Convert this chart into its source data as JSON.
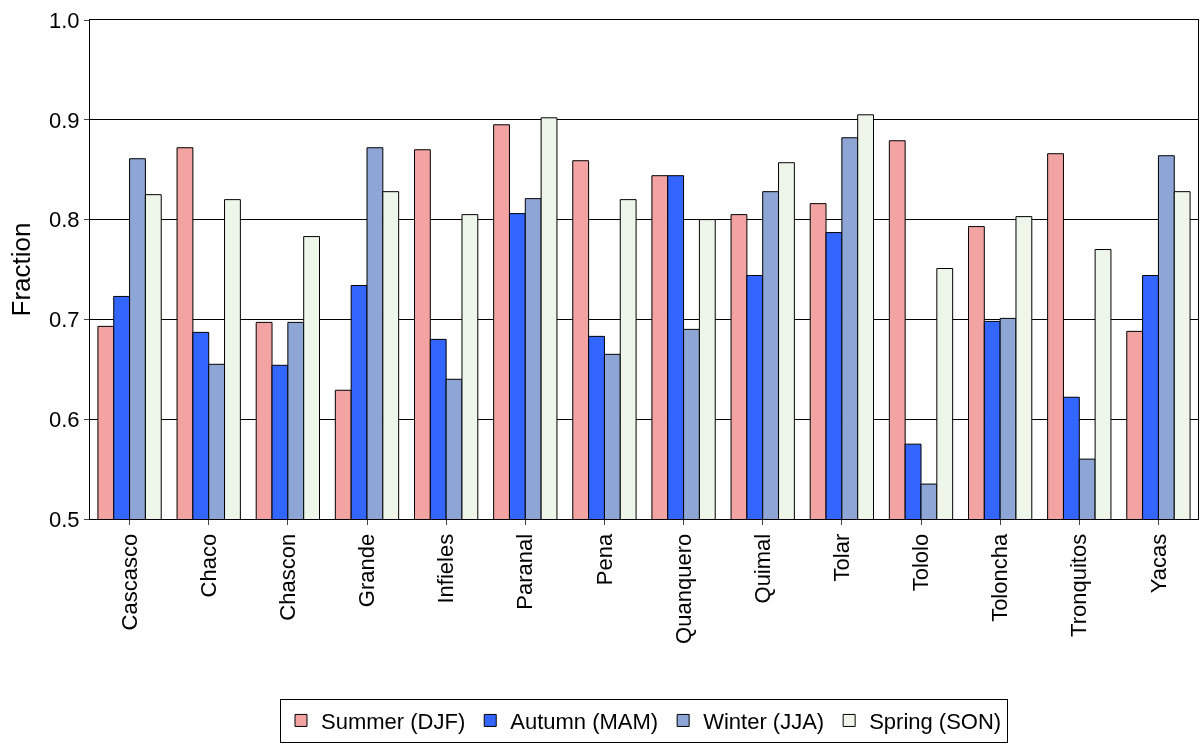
{
  "chart_data": {
    "type": "bar",
    "ylabel": "Fraction",
    "categories": [
      "Cascasco",
      "Chaco",
      "Chascon",
      "Grande",
      "Infieles",
      "Paranal",
      "Pena",
      "Quanquero",
      "Quimal",
      "Tolar",
      "Tololo",
      "Toloncha",
      "Tronquitos",
      "Yacas"
    ],
    "series": [
      {
        "name": "Summer (DJF)",
        "color": "#f4a3a3",
        "values": [
          0.693,
          0.872,
          0.697,
          0.629,
          0.87,
          0.895,
          0.859,
          0.844,
          0.805,
          0.816,
          0.879,
          0.793,
          0.866,
          0.688
        ]
      },
      {
        "name": "Autumn (MAM)",
        "color": "#3366ff",
        "values": [
          0.723,
          0.687,
          0.654,
          0.734,
          0.68,
          0.806,
          0.683,
          0.844,
          0.744,
          0.787,
          0.575,
          0.698,
          0.622,
          0.744
        ]
      },
      {
        "name": "Winter (JJA)",
        "color": "#8ea6d6",
        "values": [
          0.861,
          0.655,
          0.697,
          0.872,
          0.64,
          0.821,
          0.665,
          0.69,
          0.828,
          0.882,
          0.535,
          0.701,
          0.56,
          0.864
        ]
      },
      {
        "name": "Spring (SON)",
        "color": "#eef6ea",
        "values": [
          0.825,
          0.82,
          0.783,
          0.828,
          0.805,
          0.902,
          0.82,
          0.8,
          0.857,
          0.905,
          0.751,
          0.803,
          0.77,
          0.828
        ]
      }
    ],
    "ylim": [
      0.5,
      1.0
    ],
    "yticks": [
      {
        "value": 0.5,
        "label": "0.5"
      },
      {
        "value": 0.6,
        "label": "0.6"
      },
      {
        "value": 0.7,
        "label": "0.7"
      },
      {
        "value": 0.8,
        "label": "0.8"
      },
      {
        "value": 0.9,
        "label": "0.9"
      },
      {
        "value": 1.0,
        "label": "1.0"
      }
    ],
    "grid": "y",
    "legend": "bottom"
  }
}
